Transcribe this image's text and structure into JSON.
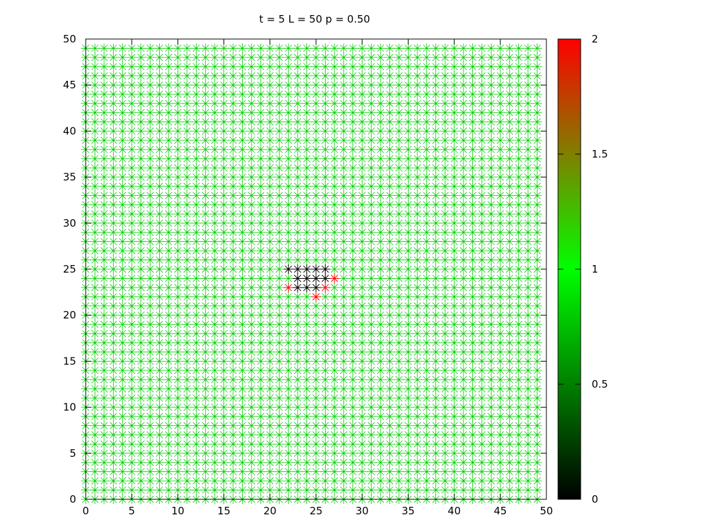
{
  "chart_data": {
    "type": "scatter",
    "title": "t = 5 L = 50 p = 0.50",
    "xlabel": "",
    "ylabel": "",
    "xlim": [
      0,
      50
    ],
    "ylim": [
      0,
      50
    ],
    "x_ticks": [
      0,
      5,
      10,
      15,
      20,
      25,
      30,
      35,
      40,
      45,
      50
    ],
    "y_ticks": [
      0,
      5,
      10,
      15,
      20,
      25,
      30,
      35,
      40,
      45,
      50
    ],
    "grid": false,
    "marker": "asterisk",
    "lattice": {
      "x_range": [
        0,
        49
      ],
      "y_range": [
        0,
        49
      ],
      "default_state": 1
    },
    "state_points": [
      {
        "x": 22,
        "y": 25,
        "state": 0
      },
      {
        "x": 23,
        "y": 25,
        "state": 0
      },
      {
        "x": 24,
        "y": 25,
        "state": 0
      },
      {
        "x": 25,
        "y": 25,
        "state": 0
      },
      {
        "x": 26,
        "y": 25,
        "state": 0
      },
      {
        "x": 23,
        "y": 24,
        "state": 0
      },
      {
        "x": 24,
        "y": 24,
        "state": 0
      },
      {
        "x": 25,
        "y": 24,
        "state": 0
      },
      {
        "x": 26,
        "y": 24,
        "state": 0
      },
      {
        "x": 23,
        "y": 23,
        "state": 0
      },
      {
        "x": 24,
        "y": 23,
        "state": 0
      },
      {
        "x": 25,
        "y": 23,
        "state": 0
      },
      {
        "x": 22,
        "y": 23,
        "state": 2
      },
      {
        "x": 26,
        "y": 23,
        "state": 2
      },
      {
        "x": 27,
        "y": 24,
        "state": 2
      },
      {
        "x": 25,
        "y": 22,
        "state": 2
      }
    ],
    "colorbar": {
      "range": [
        0,
        2
      ],
      "ticks": [
        0,
        0.5,
        1,
        1.5,
        2
      ],
      "tick_labels": [
        "0",
        "0.5",
        "1",
        "1.5",
        "2"
      ],
      "stops": [
        {
          "value": 0,
          "color": "#000000"
        },
        {
          "value": 1,
          "color": "#00ff00"
        },
        {
          "value": 2,
          "color": "#ff0000"
        }
      ]
    },
    "colors": {
      "axis": "#000000",
      "state_0": "#000000",
      "state_1": "#00cc00",
      "state_2": "#ff0000"
    }
  }
}
